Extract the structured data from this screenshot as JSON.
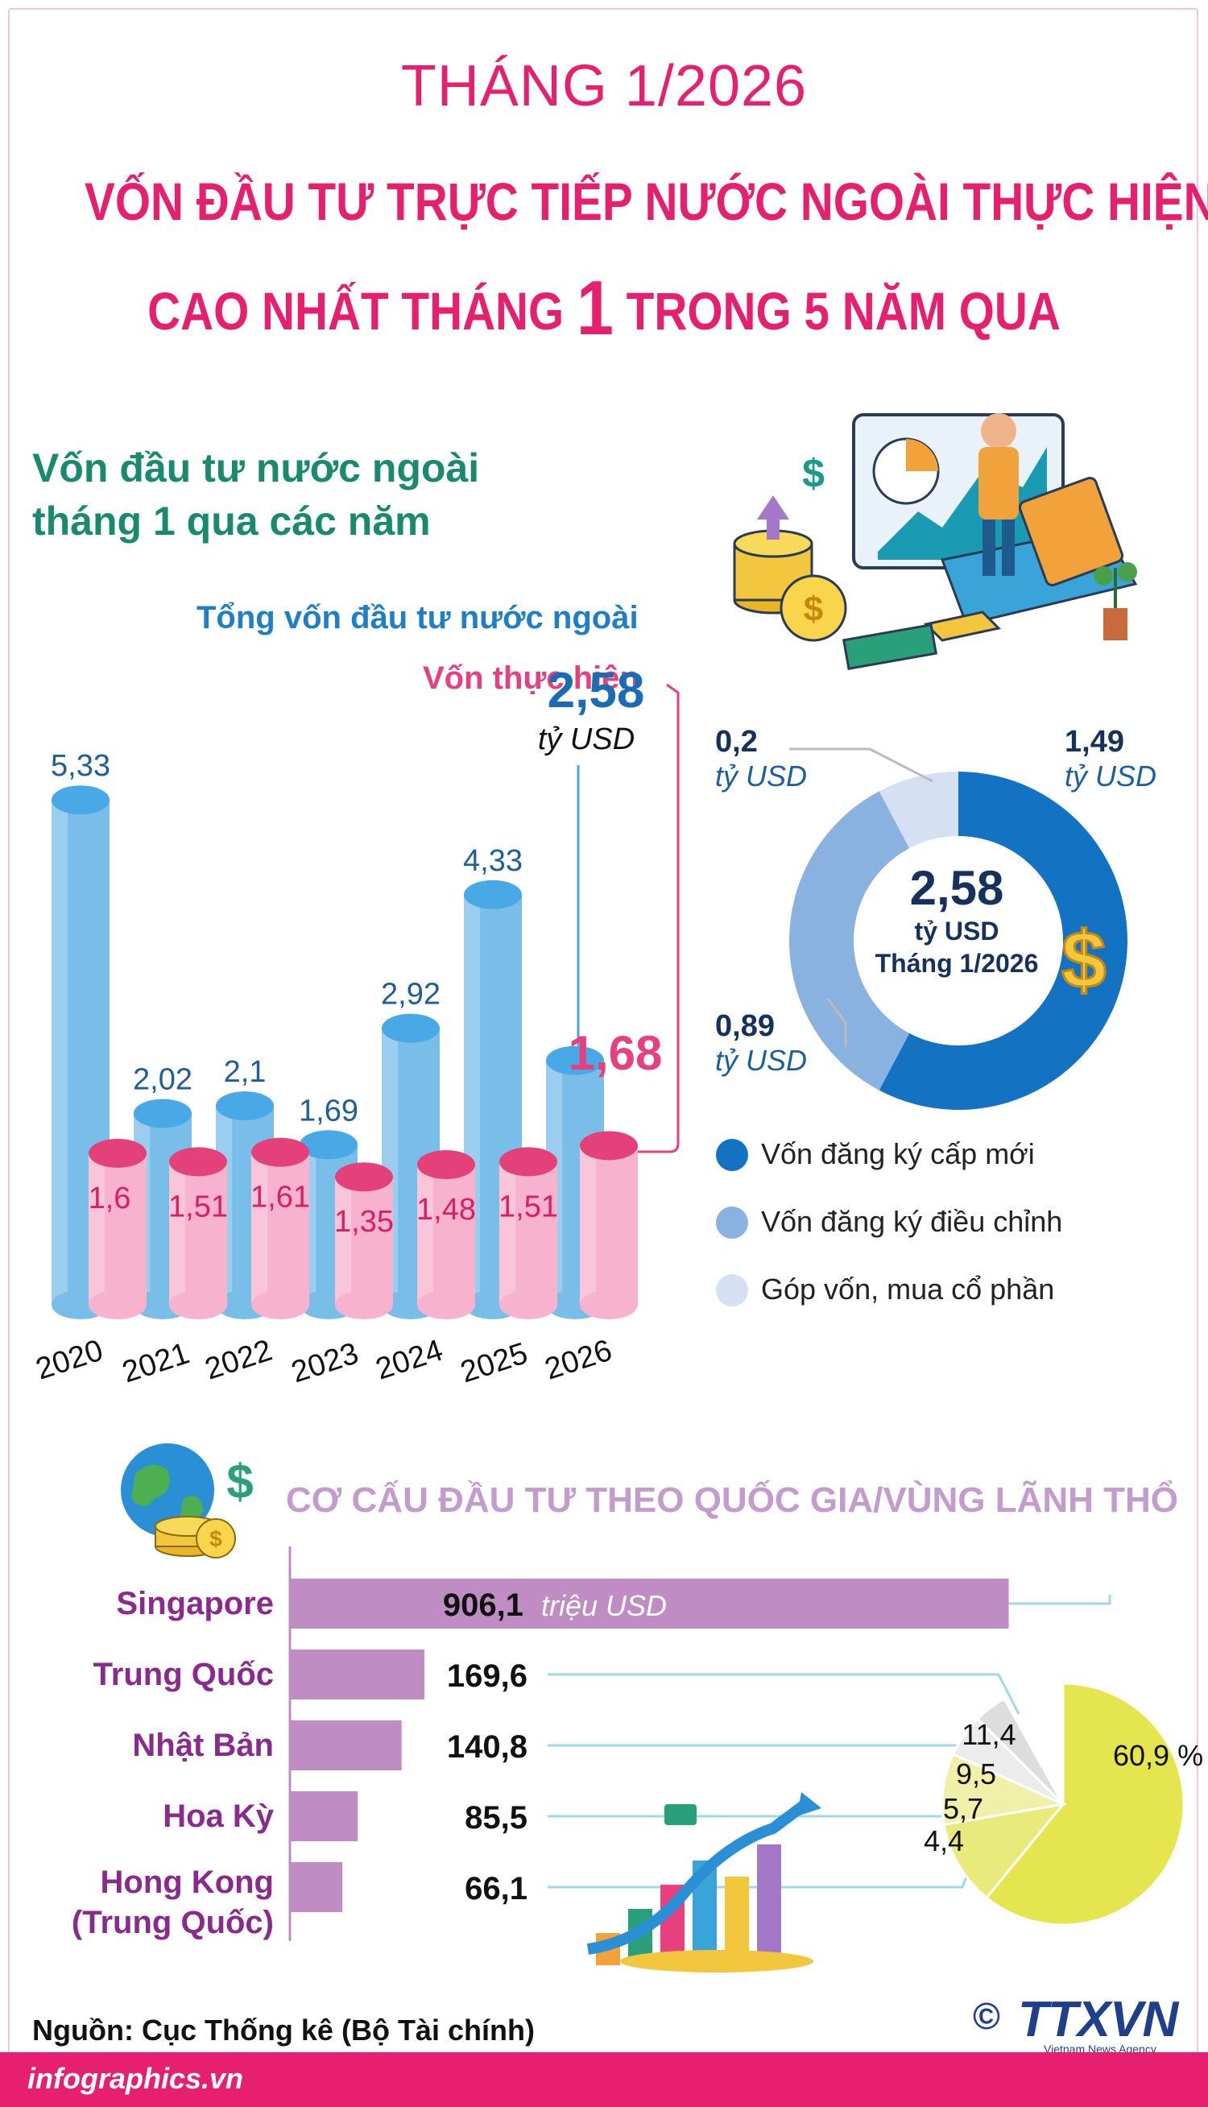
{
  "header": {
    "month": "THÁNG 1/2026",
    "headline_line1": "VỐN ĐẦU TƯ TRỰC TIẾP NƯỚC NGOÀI THỰC HIỆN",
    "headline_line2_pre": "CAO NHẤT THÁNG",
    "headline_line2_big": "1",
    "headline_line2_post": "TRONG 5 NĂM QUA"
  },
  "chart1_title_line1": "Vốn đầu tư nước ngoài",
  "chart1_title_line2": "tháng 1 qua các năm",
  "donut_center": {
    "value": "2,58",
    "unit": "tỷ USD",
    "period": "Tháng 1/2026"
  },
  "donut_labels": {
    "new": "1,49",
    "adjust": "0,89",
    "share": "0,2",
    "unit": "tỷ USD"
  },
  "callout_total": {
    "value": "2,58",
    "unit": "tỷ USD"
  },
  "callout_real": "1,68",
  "section2_title": "CƠ CẤU ĐẦU TƯ THEO QUỐC GIA/VÙNG LÃNH THỔ",
  "countries_unit": "triệu USD",
  "source": "Nguồn: Cục Thống kê (Bộ Tài chính)",
  "footer_site": "infographics.vn",
  "logo": {
    "copyright": "©",
    "text": "TTXVN",
    "sub": "Vietnam News Agency"
  },
  "colors": {
    "title": "#e6206e",
    "total_bar": "#79bde9",
    "real_bar": "#f7b2cd",
    "new_capital": "#1373c2",
    "adjusted_capital": "#8ab2e0",
    "share_purchase": "#d5e0f2",
    "country_bar": "#c08cc4",
    "pie_main": "#e4e54f",
    "pie_others": [
      "#e9ea7c",
      "#f0f0a8",
      "#ececec",
      "#dddddd"
    ]
  },
  "chart_data": [
    {
      "type": "bar",
      "categories": [
        "2020",
        "2021",
        "2022",
        "2023",
        "2024",
        "2025",
        "2026"
      ],
      "series": [
        {
          "name": "Tổng vốn đầu tư nước ngoài",
          "values": [
            5.33,
            2.02,
            2.1,
            1.69,
            2.92,
            4.33,
            2.58
          ],
          "labels": [
            "5,33",
            "2,02",
            "2,1",
            "1,69",
            "2,92",
            "4,33",
            "2,58"
          ]
        },
        {
          "name": "Vốn thực hiện",
          "values": [
            1.6,
            1.51,
            1.61,
            1.35,
            1.48,
            1.51,
            1.68
          ],
          "labels": [
            "1,6",
            "1,51",
            "1,61",
            "1,35",
            "1,48",
            "1,51",
            "1,68"
          ]
        }
      ]
    },
    {
      "type": "pie",
      "categories": [
        "Vốn đăng ký cấp mới",
        "Vốn đăng ký điều chỉnh",
        "Góp vốn, mua cổ phần"
      ],
      "values": [
        1.49,
        0.89,
        0.2
      ],
      "labels": [
        "1,49",
        "0,89",
        "0,2"
      ]
    },
    {
      "type": "bar",
      "orientation": "horizontal",
      "categories": [
        "Singapore",
        "Trung Quốc",
        "Nhật Bản",
        "Hoa Kỳ",
        "Hong Kong (Trung Quốc)"
      ],
      "values": [
        906.1,
        169.6,
        140.8,
        85.5,
        66.1
      ],
      "labels": [
        "906,1",
        "169,6",
        "140,8",
        "85,5",
        "66,1"
      ]
    },
    {
      "type": "pie",
      "values": [
        60.9,
        11.4,
        9.5,
        5.7,
        4.4
      ],
      "labels": [
        "60,9 %",
        "11,4",
        "9,5",
        "5,7",
        "4,4"
      ]
    }
  ]
}
